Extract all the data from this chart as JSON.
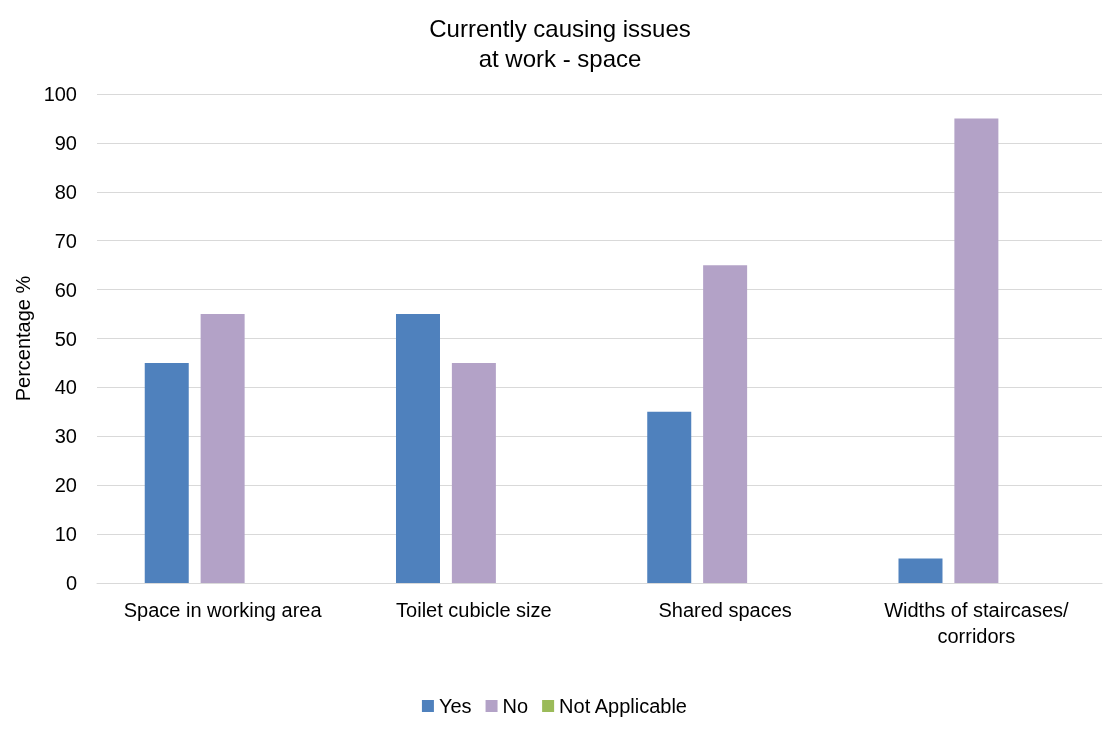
{
  "chart_data": {
    "type": "bar",
    "title": "Currently causing issues\nat work - space",
    "ylabel": "Percentage %",
    "categories": [
      "Space in working area",
      "Toilet cubicle size",
      "Shared spaces",
      "Widths of staircases/corridors"
    ],
    "series": [
      {
        "name": "Yes",
        "color": "#4f81bd",
        "values": [
          45,
          55,
          35,
          5
        ]
      },
      {
        "name": "No",
        "color": "#b3a2c7",
        "values": [
          55,
          45,
          65,
          95
        ]
      },
      {
        "name": "Not Applicable",
        "color": "#9bbb59",
        "values": [
          0,
          0,
          0,
          0
        ]
      }
    ],
    "ylim": [
      0,
      100
    ],
    "yticks": [
      0,
      10,
      20,
      30,
      40,
      50,
      60,
      70,
      80,
      90,
      100
    ],
    "grid": "y",
    "legend": "bottom"
  }
}
